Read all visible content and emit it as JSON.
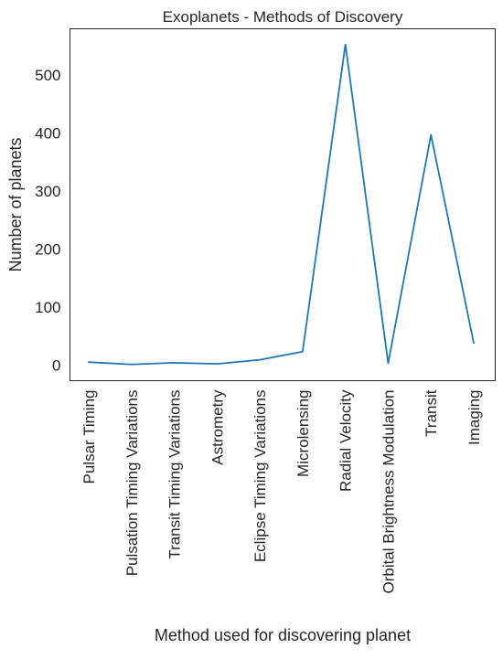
{
  "chart_data": {
    "type": "line",
    "title": "Exoplanets - Methods of Discovery",
    "xlabel": "Method used for discovering planet",
    "ylabel": "Number of planets",
    "categories": [
      "Pulsar Timing",
      "Pulsation Timing Variations",
      "Transit Timing Variations",
      "Astrometry",
      "Eclipse Timing Variations",
      "Microlensing",
      "Radial Velocity",
      "Orbital Brightness Modulation",
      "Transit",
      "Imaging"
    ],
    "series": [
      {
        "values": [
          5,
          1,
          4,
          2,
          9,
          23,
          553,
          3,
          397,
          38
        ],
        "color": "#1f77b4"
      }
    ],
    "yticks": [
      0,
      100,
      200,
      300,
      400,
      500
    ],
    "ylim": [
      -27,
      580
    ],
    "grid": false,
    "legend": "none"
  }
}
